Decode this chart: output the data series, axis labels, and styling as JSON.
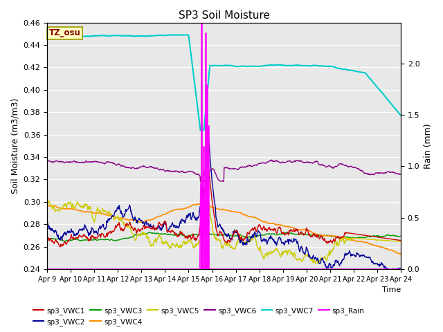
{
  "title": "SP3 Soil Moisture",
  "ylabel_left": "Soil Moisture (m3/m3)",
  "ylabel_right": "Rain (mm)",
  "xlabel": "Time",
  "ylim_left": [
    0.24,
    0.46
  ],
  "ylim_right": [
    0.0,
    2.4
  ],
  "annotation_text": "TZ_osu",
  "annotation_color": "#8B0000",
  "annotation_bg": "#FFFFC0",
  "annotation_border": "#999900",
  "bg_color": "#E8E8E8",
  "grid_color": "#FFFFFF",
  "colors": {
    "VWC1": "#CC0000",
    "VWC2": "#000099",
    "VWC3": "#009900",
    "VWC4": "#FF8C00",
    "VWC5": "#CCCC00",
    "VWC6": "#880088",
    "VWC7": "#00CCCC",
    "Rain": "#FF00FF"
  }
}
